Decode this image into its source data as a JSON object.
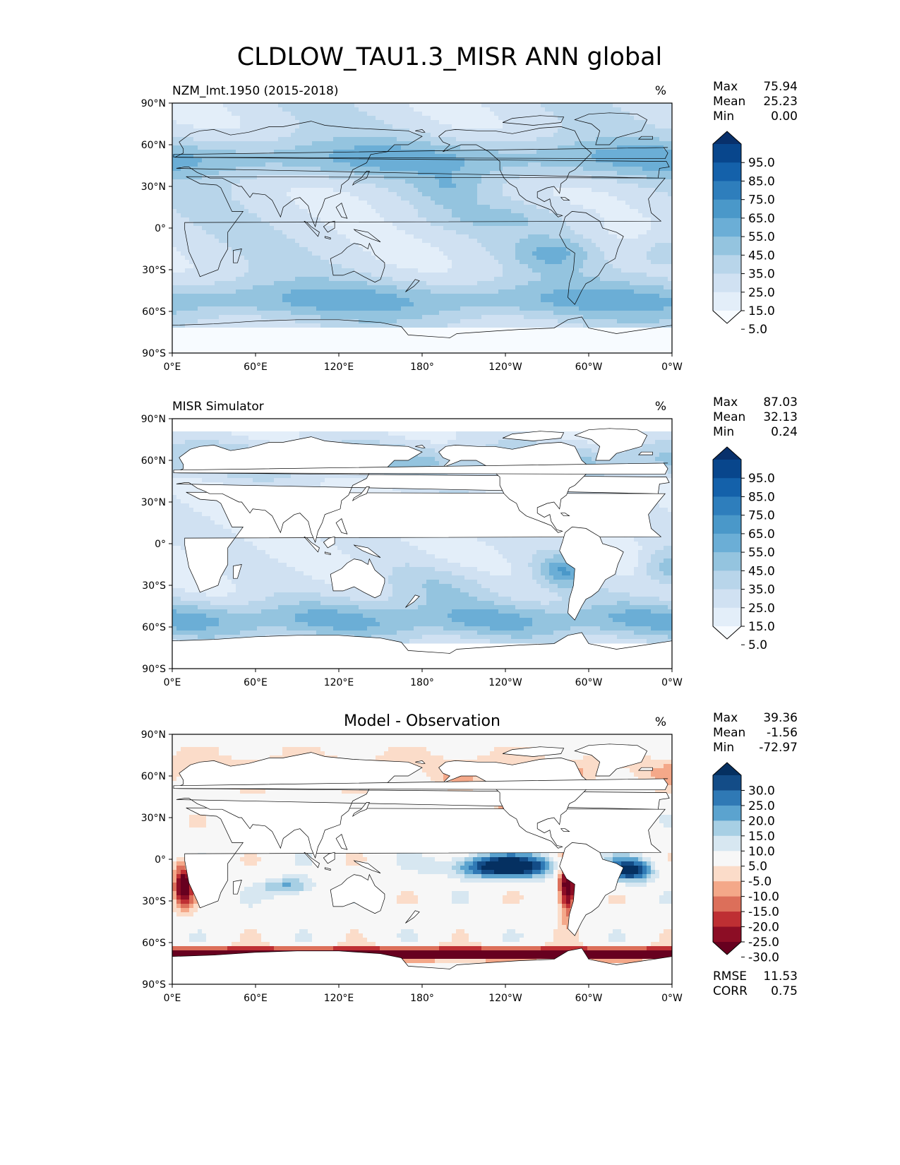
{
  "title": "CLDLOW_TAU1.3_MISR ANN global",
  "lat_ticks": [
    "90°N",
    "60°N",
    "30°N",
    "0°",
    "30°S",
    "60°S",
    "90°S"
  ],
  "lon_ticks": [
    "0°E",
    "60°E",
    "120°E",
    "180°",
    "120°W",
    "60°W",
    "0°W"
  ],
  "stat_labels": {
    "max": "Max",
    "mean": "Mean",
    "min": "Min",
    "rmse": "RMSE",
    "corr": "CORR"
  },
  "panels": [
    {
      "id": "test",
      "title_left": "NZM_lmt.1950 (2015-2018)",
      "title_center": "",
      "units": "%",
      "stats": {
        "max": "75.94",
        "mean": "25.23",
        "min": "0.00"
      },
      "colorbar": {
        "labels": [
          "95.0",
          "85.0",
          "75.0",
          "65.0",
          "55.0",
          "45.0",
          "35.0",
          "25.0",
          "15.0",
          "5.0"
        ],
        "colors": [
          "#08306b",
          "#08468c",
          "#1461aa",
          "#2e7ebc",
          "#4a98c9",
          "#6baed6",
          "#94c4df",
          "#b8d5ea",
          "#d0e1f2",
          "#e3eef9",
          "#f7fbff"
        ]
      }
    },
    {
      "id": "ref",
      "title_left": "MISR Simulator",
      "title_center": "",
      "units": "%",
      "stats": {
        "max": "87.03",
        "mean": "32.13",
        "min": "0.24"
      },
      "colorbar": {
        "labels": [
          "95.0",
          "85.0",
          "75.0",
          "65.0",
          "55.0",
          "45.0",
          "35.0",
          "25.0",
          "15.0",
          "5.0"
        ],
        "colors": [
          "#08306b",
          "#08468c",
          "#1461aa",
          "#2e7ebc",
          "#4a98c9",
          "#6baed6",
          "#94c4df",
          "#b8d5ea",
          "#d0e1f2",
          "#e3eef9",
          "#f7fbff"
        ]
      }
    },
    {
      "id": "diff",
      "title_left": "",
      "title_center": "Model - Observation",
      "units": "%",
      "stats": {
        "max": "39.36",
        "mean": "-1.56",
        "min": "-72.97",
        "rmse": "11.53",
        "corr": "0.75"
      },
      "colorbar": {
        "labels": [
          "30.0",
          "25.0",
          "20.0",
          "15.0",
          "10.0",
          "5.0",
          "-5.0",
          "-10.0",
          "-15.0",
          "-20.0",
          "-25.0",
          "-30.0"
        ],
        "colors": [
          "#053061",
          "#134c87",
          "#2f79b5",
          "#5ba3cf",
          "#a7cfe4",
          "#d7e7f1",
          "#f7f7f7",
          "#fbdcc9",
          "#f4a889",
          "#dc6f5a",
          "#be2f33",
          "#8c0d25",
          "#67001f"
        ]
      }
    }
  ]
}
